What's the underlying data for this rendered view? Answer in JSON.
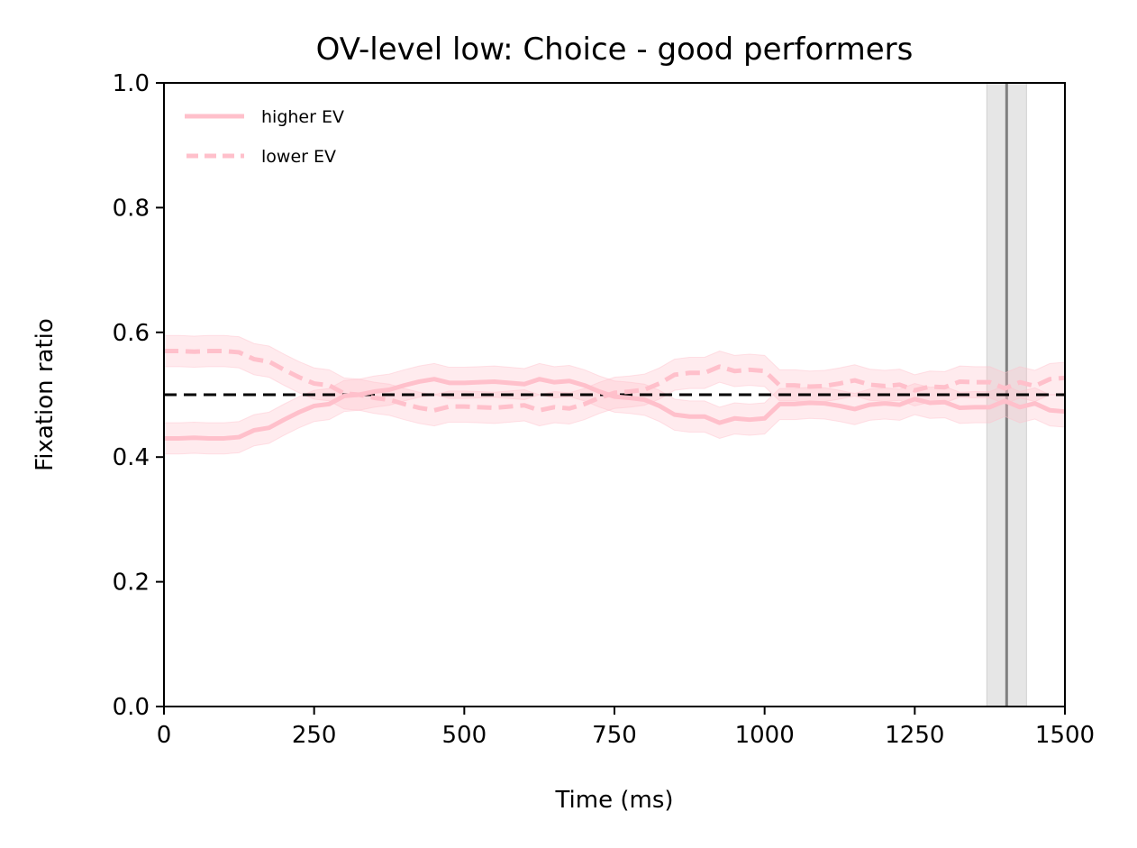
{
  "chart_data": {
    "type": "line",
    "title": "OV-level low: Choice - good performers",
    "xlabel": "Time (ms)",
    "ylabel": "Fixation ratio",
    "xlim": [
      0,
      1500
    ],
    "ylim": [
      0.0,
      1.0
    ],
    "xticks": [
      0,
      250,
      500,
      750,
      1000,
      1250,
      1500
    ],
    "yticks": [
      0.0,
      0.2,
      0.4,
      0.6,
      0.8,
      1.0
    ],
    "xtick_labels": [
      "0",
      "250",
      "500",
      "750",
      "1000",
      "1250",
      "1500"
    ],
    "ytick_labels": [
      "0.0",
      "0.2",
      "0.4",
      "0.6",
      "0.8",
      "1.0"
    ],
    "legend_position": "top-left",
    "reference_line": {
      "y": 0.5,
      "style": "dashed",
      "color": "#000000"
    },
    "vertical_marker": {
      "x": 1403,
      "band": [
        1370,
        1436
      ],
      "line_color": "#808080",
      "band_color": "#e6e6e6"
    },
    "band_halfwidth": 0.025,
    "x": [
      0,
      25,
      50,
      75,
      100,
      125,
      150,
      175,
      200,
      225,
      250,
      275,
      300,
      325,
      350,
      375,
      400,
      425,
      450,
      475,
      500,
      525,
      550,
      575,
      600,
      625,
      650,
      675,
      700,
      725,
      750,
      775,
      800,
      825,
      850,
      875,
      900,
      925,
      950,
      975,
      1000,
      1025,
      1050,
      1075,
      1100,
      1125,
      1150,
      1175,
      1200,
      1225,
      1250,
      1275,
      1300,
      1325,
      1350,
      1375,
      1400,
      1425,
      1450,
      1475,
      1500
    ],
    "series": [
      {
        "name": "higher EV",
        "style": "solid",
        "color": "#ffc0cb",
        "values": [
          0.43,
          0.43,
          0.431,
          0.43,
          0.43,
          0.432,
          0.443,
          0.447,
          0.46,
          0.472,
          0.482,
          0.485,
          0.498,
          0.5,
          0.505,
          0.508,
          0.515,
          0.521,
          0.525,
          0.519,
          0.519,
          0.52,
          0.521,
          0.519,
          0.517,
          0.525,
          0.52,
          0.522,
          0.515,
          0.505,
          0.497,
          0.495,
          0.492,
          0.482,
          0.468,
          0.465,
          0.465,
          0.455,
          0.462,
          0.46,
          0.462,
          0.485,
          0.485,
          0.487,
          0.486,
          0.482,
          0.477,
          0.484,
          0.486,
          0.484,
          0.493,
          0.487,
          0.488,
          0.479,
          0.48,
          0.48,
          0.49,
          0.48,
          0.486,
          0.475,
          0.473
        ]
      },
      {
        "name": "lower EV",
        "style": "dashed",
        "color": "#ffc0cb",
        "values": [
          0.57,
          0.57,
          0.569,
          0.57,
          0.57,
          0.568,
          0.557,
          0.553,
          0.54,
          0.528,
          0.518,
          0.515,
          0.502,
          0.5,
          0.495,
          0.492,
          0.485,
          0.479,
          0.475,
          0.481,
          0.481,
          0.48,
          0.479,
          0.481,
          0.483,
          0.475,
          0.48,
          0.478,
          0.485,
          0.495,
          0.503,
          0.505,
          0.508,
          0.518,
          0.532,
          0.535,
          0.535,
          0.545,
          0.538,
          0.54,
          0.538,
          0.515,
          0.515,
          0.513,
          0.514,
          0.518,
          0.523,
          0.516,
          0.514,
          0.516,
          0.507,
          0.513,
          0.512,
          0.521,
          0.52,
          0.52,
          0.51,
          0.52,
          0.514,
          0.525,
          0.527
        ]
      }
    ]
  }
}
